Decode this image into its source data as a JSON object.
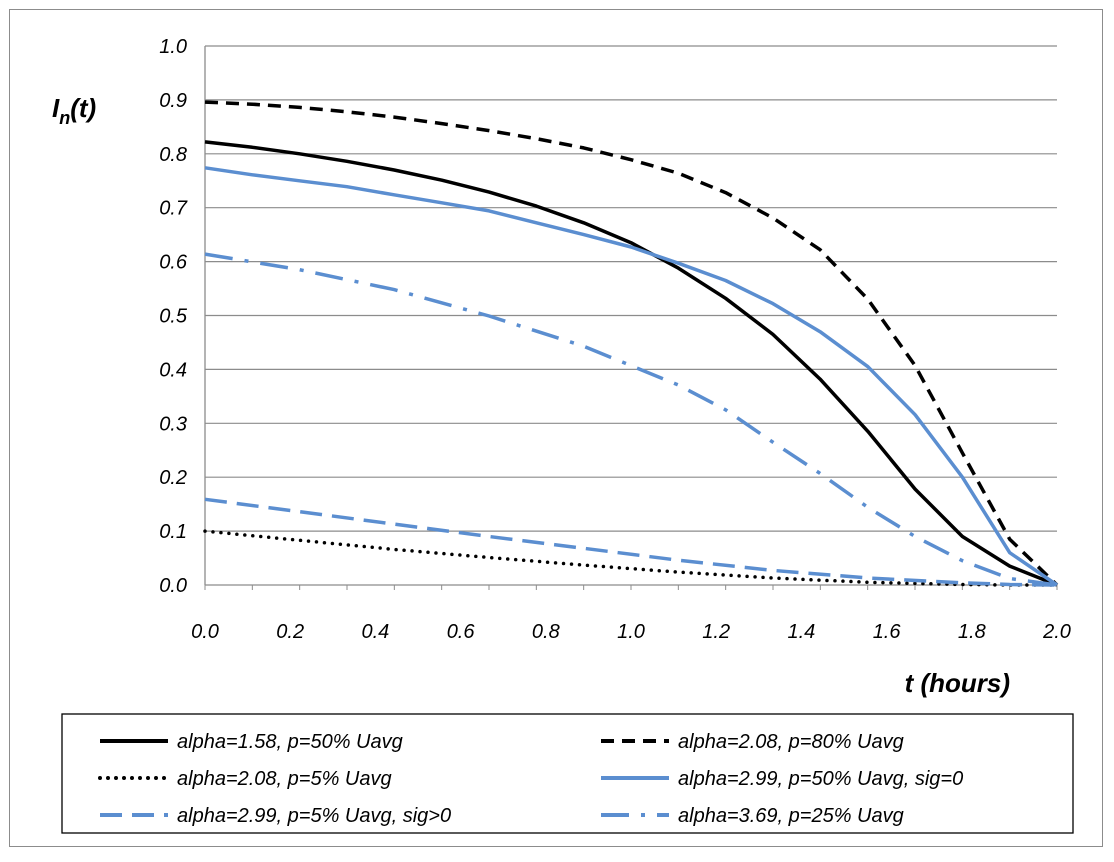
{
  "chart_data": {
    "type": "line",
    "xlabel": "t (hours)",
    "ylabel": {
      "main": "I",
      "sub": "n",
      "suffix": "(t)"
    },
    "xlim": [
      0.0,
      2.0
    ],
    "ylim": [
      0.0,
      1.0
    ],
    "x_ticks": [
      "0.0",
      "0.2",
      "0.4",
      "0.6",
      "0.8",
      "1.0",
      "1.2",
      "1.4",
      "1.6",
      "1.8",
      "2.0"
    ],
    "y_ticks": [
      "0.0",
      "0.1",
      "0.2",
      "0.3",
      "0.4",
      "0.5",
      "0.6",
      "0.7",
      "0.8",
      "0.9",
      "1.0"
    ],
    "grid": "horizontal",
    "legend_position": "bottom",
    "series": [
      {
        "name": "alpha=1.58, p=50% Uavg",
        "color": "#000000",
        "style": "solid",
        "x": [
          0.0,
          0.111,
          0.222,
          0.333,
          0.444,
          0.556,
          0.667,
          0.778,
          0.889,
          1.0,
          1.111,
          1.222,
          1.333,
          1.444,
          1.556,
          1.667,
          1.778,
          1.889,
          2.0
        ],
        "y": [
          0.822,
          0.812,
          0.8,
          0.786,
          0.77,
          0.751,
          0.729,
          0.703,
          0.672,
          0.635,
          0.588,
          0.532,
          0.465,
          0.382,
          0.285,
          0.178,
          0.09,
          0.035,
          0.0
        ]
      },
      {
        "name": "alpha=2.08, p=80% Uavg",
        "color": "#000000",
        "style": "dash",
        "x": [
          0.0,
          0.111,
          0.222,
          0.333,
          0.444,
          0.556,
          0.667,
          0.778,
          0.889,
          1.0,
          1.111,
          1.222,
          1.333,
          1.444,
          1.556,
          1.667,
          1.778,
          1.889,
          2.0
        ],
        "y": [
          0.896,
          0.892,
          0.886,
          0.878,
          0.868,
          0.856,
          0.843,
          0.828,
          0.811,
          0.789,
          0.764,
          0.728,
          0.681,
          0.622,
          0.53,
          0.407,
          0.245,
          0.085,
          0.0
        ]
      },
      {
        "name": "alpha=2.08, p=5% Uavg",
        "color": "#000000",
        "style": "dot",
        "x": [
          0.0,
          0.222,
          0.444,
          0.667,
          0.889,
          1.111,
          1.333,
          1.556,
          1.778,
          1.889,
          2.0
        ],
        "y": [
          0.1,
          0.083,
          0.066,
          0.051,
          0.037,
          0.024,
          0.013,
          0.005,
          0.001,
          0.0,
          0.0
        ]
      },
      {
        "name": "alpha=2.99, p=50% Uavg, sig=0",
        "color": "#5b8ed0",
        "style": "solid",
        "x": [
          0.0,
          0.111,
          0.222,
          0.333,
          0.444,
          0.556,
          0.667,
          0.778,
          0.889,
          1.0,
          1.111,
          1.222,
          1.333,
          1.444,
          1.556,
          1.667,
          1.778,
          1.889,
          2.0
        ],
        "y": [
          0.774,
          0.761,
          0.75,
          0.739,
          0.724,
          0.709,
          0.694,
          0.672,
          0.65,
          0.627,
          0.597,
          0.565,
          0.522,
          0.47,
          0.405,
          0.316,
          0.2,
          0.06,
          0.0
        ]
      },
      {
        "name": "alpha=2.99, p=5% Uavg, sig>0",
        "color": "#5b8ed0",
        "style": "longdash",
        "x": [
          0.0,
          0.222,
          0.444,
          0.667,
          0.889,
          1.111,
          1.333,
          1.556,
          1.778,
          1.889,
          2.0
        ],
        "y": [
          0.159,
          0.136,
          0.113,
          0.09,
          0.068,
          0.046,
          0.027,
          0.013,
          0.004,
          0.001,
          0.0
        ]
      },
      {
        "name": "alpha=3.69, p=25% Uavg",
        "color": "#5b8ed0",
        "style": "dashdot",
        "x": [
          0.0,
          0.222,
          0.444,
          0.667,
          0.889,
          1.0,
          1.111,
          1.222,
          1.333,
          1.444,
          1.556,
          1.667,
          1.778,
          1.889,
          2.0
        ],
        "y": [
          0.614,
          0.585,
          0.548,
          0.499,
          0.443,
          0.407,
          0.371,
          0.325,
          0.265,
          0.207,
          0.144,
          0.09,
          0.045,
          0.012,
          0.0
        ]
      }
    ]
  }
}
